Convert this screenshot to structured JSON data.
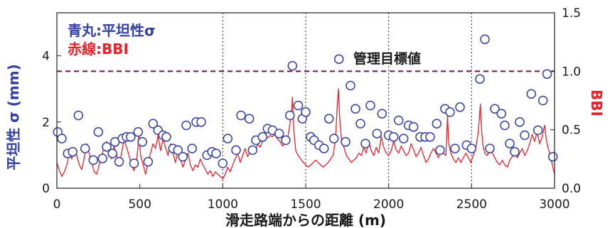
{
  "chart_data": {
    "type": "scatter+line",
    "legend": {
      "blue": "青丸:平坦性σ",
      "red": "赤線:BBI"
    },
    "xlabel": "滑走路端からの距離 (m)",
    "ylabel_left": "平坦性 σ (mm)",
    "ylabel_right": "BBI",
    "xlim": [
      0,
      3000
    ],
    "ylim_left": [
      0,
      5.3
    ],
    "ylim_right": [
      0,
      1.5
    ],
    "x_ticks": [
      "0",
      "500",
      "1000",
      "1500",
      "2000",
      "2500",
      "3000"
    ],
    "x_tick_values": [
      0,
      500,
      1000,
      1500,
      2000,
      2500,
      3000
    ],
    "y_left_ticks": [
      "0",
      "2",
      "4"
    ],
    "y_left_tick_values": [
      0,
      2,
      4
    ],
    "y_right_ticks": [
      "0.0",
      "0.5",
      "1.0",
      "1.5"
    ],
    "y_right_tick_values": [
      0,
      0.5,
      1.0,
      1.5
    ],
    "grid_x_dotted": [
      1000,
      1500,
      2000,
      2500
    ],
    "threshold": {
      "label": "管理目標値",
      "value_bbi": 1.0
    },
    "colors": {
      "blue": "#3340a0",
      "red": "#e8202a",
      "threshold": "#7a2046"
    },
    "series": [
      {
        "name": "平坦性σ",
        "kind": "scatter",
        "axis": "left",
        "points": [
          [
            5,
            1.7
          ],
          [
            30,
            1.5
          ],
          [
            65,
            1.05
          ],
          [
            95,
            1.1
          ],
          [
            130,
            2.2
          ],
          [
            170,
            1.2
          ],
          [
            220,
            0.85
          ],
          [
            250,
            1.7
          ],
          [
            275,
            0.9
          ],
          [
            300,
            1.25
          ],
          [
            335,
            1.05
          ],
          [
            350,
            1.4
          ],
          [
            375,
            0.8
          ],
          [
            395,
            1.5
          ],
          [
            420,
            1.55
          ],
          [
            445,
            1.55
          ],
          [
            465,
            0.75
          ],
          [
            490,
            1.7
          ],
          [
            515,
            1.4
          ],
          [
            550,
            0.8
          ],
          [
            580,
            1.95
          ],
          [
            610,
            1.75
          ],
          [
            640,
            1.6
          ],
          [
            660,
            1.55
          ],
          [
            700,
            1.2
          ],
          [
            730,
            1.15
          ],
          [
            760,
            0.95
          ],
          [
            780,
            1.9
          ],
          [
            815,
            1.2
          ],
          [
            840,
            2.0
          ],
          [
            870,
            2.0
          ],
          [
            905,
            1.0
          ],
          [
            935,
            1.1
          ],
          [
            960,
            1.05
          ],
          [
            1000,
            0.75
          ],
          [
            1030,
            1.5
          ],
          [
            1080,
            1.15
          ],
          [
            1110,
            2.2
          ],
          [
            1160,
            2.1
          ],
          [
            1180,
            1.15
          ],
          [
            1200,
            1.45
          ],
          [
            1240,
            1.55
          ],
          [
            1270,
            1.8
          ],
          [
            1300,
            1.75
          ],
          [
            1340,
            1.65
          ],
          [
            1380,
            1.45
          ],
          [
            1405,
            2.2
          ],
          [
            1420,
            3.7
          ],
          [
            1455,
            2.5
          ],
          [
            1480,
            2.1
          ],
          [
            1500,
            2.3
          ],
          [
            1530,
            1.55
          ],
          [
            1550,
            1.45
          ],
          [
            1580,
            1.3
          ],
          [
            1610,
            1.2
          ],
          [
            1640,
            2.1
          ],
          [
            1670,
            1.5
          ],
          [
            1700,
            3.9
          ],
          [
            1740,
            1.4
          ],
          [
            1770,
            3.1
          ],
          [
            1800,
            2.4
          ],
          [
            1830,
            1.95
          ],
          [
            1860,
            1.35
          ],
          [
            1890,
            2.5
          ],
          [
            1930,
            1.65
          ],
          [
            1960,
            2.25
          ],
          [
            2000,
            1.6
          ],
          [
            2030,
            1.55
          ],
          [
            2060,
            2.05
          ],
          [
            2090,
            1.5
          ],
          [
            2120,
            1.9
          ],
          [
            2150,
            1.85
          ],
          [
            2190,
            1.55
          ],
          [
            2220,
            1.55
          ],
          [
            2250,
            1.55
          ],
          [
            2290,
            1.95
          ],
          [
            2310,
            1.15
          ],
          [
            2340,
            2.4
          ],
          [
            2370,
            2.3
          ],
          [
            2400,
            1.2
          ],
          [
            2430,
            2.45
          ],
          [
            2470,
            1.3
          ],
          [
            2500,
            1.2
          ],
          [
            2550,
            3.3
          ],
          [
            2580,
            4.5
          ],
          [
            2610,
            1.2
          ],
          [
            2640,
            2.4
          ],
          [
            2680,
            2.25
          ],
          [
            2700,
            1.9
          ],
          [
            2730,
            1.35
          ],
          [
            2760,
            1.1
          ],
          [
            2790,
            2.0
          ],
          [
            2820,
            1.6
          ],
          [
            2860,
            2.85
          ],
          [
            2900,
            1.75
          ],
          [
            2930,
            2.65
          ],
          [
            2955,
            3.45
          ],
          [
            2990,
            0.95
          ]
        ]
      },
      {
        "name": "BBI",
        "kind": "line",
        "axis": "right",
        "points": [
          [
            0,
            0.22
          ],
          [
            15,
            0.15
          ],
          [
            30,
            0.1
          ],
          [
            45,
            0.14
          ],
          [
            60,
            0.2
          ],
          [
            75,
            0.3
          ],
          [
            90,
            0.25
          ],
          [
            105,
            0.33
          ],
          [
            120,
            0.28
          ],
          [
            135,
            0.2
          ],
          [
            150,
            0.16
          ],
          [
            165,
            0.26
          ],
          [
            180,
            0.38
          ],
          [
            195,
            0.3
          ],
          [
            210,
            0.22
          ],
          [
            225,
            0.14
          ],
          [
            240,
            0.12
          ],
          [
            255,
            0.2
          ],
          [
            270,
            0.28
          ],
          [
            285,
            0.35
          ],
          [
            300,
            0.4
          ],
          [
            315,
            0.32
          ],
          [
            330,
            0.25
          ],
          [
            345,
            0.36
          ],
          [
            360,
            0.28
          ],
          [
            375,
            0.2
          ],
          [
            390,
            0.3
          ],
          [
            405,
            0.42
          ],
          [
            420,
            0.35
          ],
          [
            435,
            0.28
          ],
          [
            450,
            0.2
          ],
          [
            465,
            0.15
          ],
          [
            480,
            0.22
          ],
          [
            495,
            0.46
          ],
          [
            505,
            0.28
          ],
          [
            520,
            0.2
          ],
          [
            535,
            0.12
          ],
          [
            550,
            0.22
          ],
          [
            565,
            0.3
          ],
          [
            580,
            0.38
          ],
          [
            595,
            0.34
          ],
          [
            610,
            0.45
          ],
          [
            625,
            0.32
          ],
          [
            640,
            0.42
          ],
          [
            655,
            0.35
          ],
          [
            670,
            0.28
          ],
          [
            685,
            0.38
          ],
          [
            700,
            0.3
          ],
          [
            715,
            0.22
          ],
          [
            730,
            0.32
          ],
          [
            745,
            0.25
          ],
          [
            760,
            0.18
          ],
          [
            775,
            0.24
          ],
          [
            790,
            0.3
          ],
          [
            805,
            0.2
          ],
          [
            820,
            0.15
          ],
          [
            835,
            0.2
          ],
          [
            850,
            0.18
          ],
          [
            865,
            0.25
          ],
          [
            880,
            0.2
          ],
          [
            895,
            0.16
          ],
          [
            910,
            0.12
          ],
          [
            925,
            0.15
          ],
          [
            940,
            0.1
          ],
          [
            955,
            0.14
          ],
          [
            970,
            0.12
          ],
          [
            985,
            0.1
          ],
          [
            1000,
            0.08
          ],
          [
            1015,
            0.12
          ],
          [
            1030,
            0.18
          ],
          [
            1045,
            0.14
          ],
          [
            1060,
            0.2
          ],
          [
            1075,
            0.25
          ],
          [
            1090,
            0.3
          ],
          [
            1105,
            0.22
          ],
          [
            1120,
            0.28
          ],
          [
            1135,
            0.34
          ],
          [
            1150,
            0.27
          ],
          [
            1165,
            0.31
          ],
          [
            1180,
            0.36
          ],
          [
            1195,
            0.3
          ],
          [
            1210,
            0.38
          ],
          [
            1225,
            0.35
          ],
          [
            1240,
            0.4
          ],
          [
            1255,
            0.47
          ],
          [
            1270,
            0.43
          ],
          [
            1285,
            0.45
          ],
          [
            1300,
            0.44
          ],
          [
            1315,
            0.46
          ],
          [
            1330,
            0.42
          ],
          [
            1345,
            0.4
          ],
          [
            1360,
            0.36
          ],
          [
            1375,
            0.38
          ],
          [
            1390,
            0.41
          ],
          [
            1405,
            0.55
          ],
          [
            1415,
            0.65
          ],
          [
            1420,
            0.78
          ],
          [
            1428,
            0.5
          ],
          [
            1440,
            0.32
          ],
          [
            1455,
            0.28
          ],
          [
            1470,
            0.25
          ],
          [
            1485,
            0.22
          ],
          [
            1500,
            0.2
          ],
          [
            1515,
            0.18
          ],
          [
            1530,
            0.2
          ],
          [
            1545,
            0.22
          ],
          [
            1560,
            0.24
          ],
          [
            1575,
            0.22
          ],
          [
            1590,
            0.2
          ],
          [
            1605,
            0.18
          ],
          [
            1620,
            0.2
          ],
          [
            1635,
            0.22
          ],
          [
            1650,
            0.25
          ],
          [
            1665,
            0.28
          ],
          [
            1680,
            0.42
          ],
          [
            1690,
            0.7
          ],
          [
            1697,
            0.85
          ],
          [
            1705,
            0.6
          ],
          [
            1715,
            0.42
          ],
          [
            1730,
            0.35
          ],
          [
            1745,
            0.28
          ],
          [
            1760,
            0.25
          ],
          [
            1775,
            0.22
          ],
          [
            1790,
            0.24
          ],
          [
            1805,
            0.26
          ],
          [
            1820,
            0.3
          ],
          [
            1835,
            0.28
          ],
          [
            1850,
            0.35
          ],
          [
            1865,
            0.3
          ],
          [
            1880,
            0.4
          ],
          [
            1895,
            0.32
          ],
          [
            1910,
            0.28
          ],
          [
            1925,
            0.35
          ],
          [
            1940,
            0.3
          ],
          [
            1955,
            0.44
          ],
          [
            1970,
            0.35
          ],
          [
            1985,
            0.3
          ],
          [
            2000,
            0.28
          ],
          [
            2015,
            0.32
          ],
          [
            2030,
            0.4
          ],
          [
            2045,
            0.33
          ],
          [
            2060,
            0.3
          ],
          [
            2075,
            0.36
          ],
          [
            2090,
            0.32
          ],
          [
            2105,
            0.28
          ],
          [
            2120,
            0.3
          ],
          [
            2135,
            0.38
          ],
          [
            2150,
            0.33
          ],
          [
            2165,
            0.27
          ],
          [
            2180,
            0.3
          ],
          [
            2195,
            0.35
          ],
          [
            2210,
            0.28
          ],
          [
            2225,
            0.22
          ],
          [
            2240,
            0.25
          ],
          [
            2255,
            0.3
          ],
          [
            2270,
            0.34
          ],
          [
            2285,
            0.3
          ],
          [
            2300,
            0.26
          ],
          [
            2315,
            0.32
          ],
          [
            2330,
            0.3
          ],
          [
            2345,
            0.28
          ],
          [
            2355,
            0.62
          ],
          [
            2362,
            0.38
          ],
          [
            2375,
            0.3
          ],
          [
            2390,
            0.25
          ],
          [
            2405,
            0.22
          ],
          [
            2420,
            0.26
          ],
          [
            2435,
            0.22
          ],
          [
            2450,
            0.26
          ],
          [
            2465,
            0.3
          ],
          [
            2480,
            0.26
          ],
          [
            2495,
            0.22
          ],
          [
            2510,
            0.28
          ],
          [
            2525,
            0.34
          ],
          [
            2540,
            0.48
          ],
          [
            2553,
            0.72
          ],
          [
            2560,
            0.5
          ],
          [
            2570,
            0.35
          ],
          [
            2580,
            0.3
          ],
          [
            2595,
            0.28
          ],
          [
            2610,
            0.33
          ],
          [
            2625,
            0.3
          ],
          [
            2640,
            0.26
          ],
          [
            2655,
            0.22
          ],
          [
            2670,
            0.2
          ],
          [
            2685,
            0.24
          ],
          [
            2700,
            0.2
          ],
          [
            2715,
            0.18
          ],
          [
            2730,
            0.24
          ],
          [
            2745,
            0.27
          ],
          [
            2760,
            0.32
          ],
          [
            2775,
            0.26
          ],
          [
            2790,
            0.3
          ],
          [
            2805,
            0.34
          ],
          [
            2820,
            0.28
          ],
          [
            2835,
            0.32
          ],
          [
            2850,
            0.38
          ],
          [
            2865,
            0.46
          ],
          [
            2880,
            0.4
          ],
          [
            2895,
            0.48
          ],
          [
            2910,
            0.38
          ],
          [
            2925,
            0.44
          ],
          [
            2940,
            0.54
          ],
          [
            2950,
            0.42
          ],
          [
            2960,
            0.35
          ],
          [
            2970,
            0.3
          ],
          [
            2980,
            0.24
          ],
          [
            2990,
            0.18
          ],
          [
            3000,
            0.12
          ]
        ]
      }
    ]
  }
}
